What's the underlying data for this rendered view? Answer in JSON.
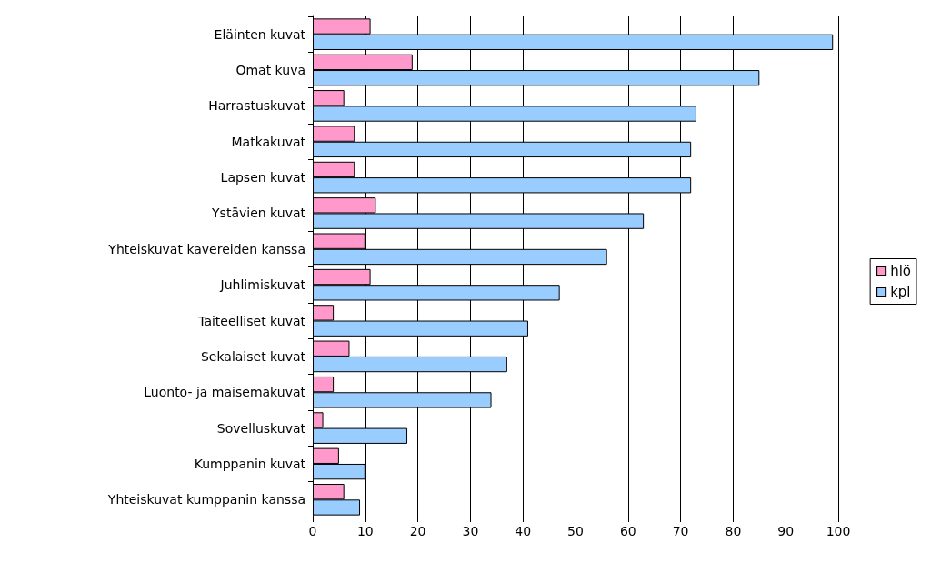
{
  "chart_data": {
    "type": "bar",
    "orientation": "horizontal",
    "categories": [
      "Eläinten kuvat",
      "Omat kuva",
      "Harrastuskuvat",
      "Matkakuvat",
      "Lapsen kuvat",
      "Ystävien kuvat",
      "Yhteiskuvat kavereiden kanssa",
      "Juhlimiskuvat",
      "Taiteelliset kuvat",
      "Sekalaiset kuvat",
      "Luonto- ja maisemakuvat",
      "Sovelluskuvat",
      "Kumppanin kuvat",
      "Yhteiskuvat kumppanin kanssa"
    ],
    "series": [
      {
        "name": "hlö",
        "color": "#ff99cc",
        "values": [
          11,
          19,
          6,
          8,
          8,
          12,
          10,
          11,
          4,
          7,
          4,
          2,
          5,
          6
        ]
      },
      {
        "name": "kpl",
        "color": "#99ccff",
        "values": [
          99,
          85,
          73,
          72,
          72,
          63,
          56,
          47,
          41,
          37,
          34,
          18,
          10,
          9
        ]
      }
    ],
    "xlim": [
      0,
      100
    ],
    "xticks": [
      0,
      10,
      20,
      30,
      40,
      50,
      60,
      70,
      80,
      90,
      100
    ],
    "grid": "x",
    "legend": "right"
  }
}
